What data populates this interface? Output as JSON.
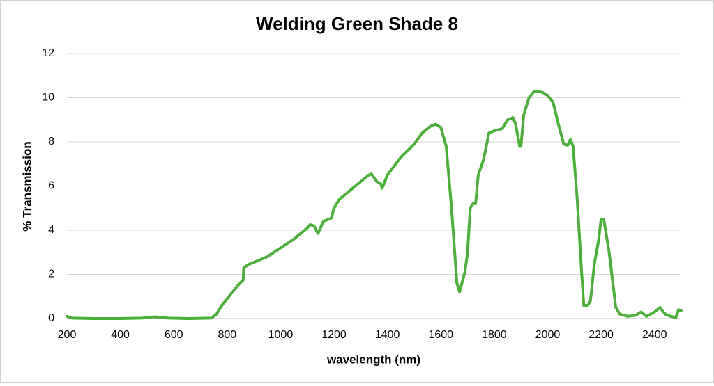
{
  "chart_data": {
    "type": "line",
    "title": "Welding Green Shade 8",
    "xlabel": "wavelength (nm)",
    "ylabel": "% Transmission",
    "x": [
      200,
      220,
      300,
      400,
      480,
      530,
      580,
      650,
      740,
      760,
      780,
      800,
      820,
      840,
      860,
      862,
      880,
      900,
      950,
      1000,
      1050,
      1080,
      1100,
      1110,
      1125,
      1140,
      1160,
      1180,
      1190,
      1200,
      1220,
      1250,
      1280,
      1300,
      1330,
      1340,
      1360,
      1375,
      1380,
      1390,
      1400,
      1450,
      1500,
      1530,
      1560,
      1580,
      1600,
      1620,
      1640,
      1660,
      1670,
      1690,
      1700,
      1710,
      1720,
      1730,
      1740,
      1760,
      1780,
      1800,
      1830,
      1850,
      1870,
      1880,
      1895,
      1900,
      1910,
      1930,
      1950,
      1980,
      2000,
      2020,
      2040,
      2060,
      2075,
      2085,
      2095,
      2110,
      2125,
      2135,
      2150,
      2160,
      2175,
      2190,
      2200,
      2210,
      2230,
      2245,
      2255,
      2270,
      2300,
      2330,
      2350,
      2370,
      2400,
      2420,
      2440,
      2460,
      2480,
      2490,
      2500
    ],
    "series": [
      {
        "name": "Welding Green Shade 8",
        "color": "#4caf3c",
        "values": [
          0.1,
          0.02,
          0,
          0,
          0.02,
          0.08,
          0.02,
          0,
          0.02,
          0.2,
          0.6,
          0.9,
          1.2,
          1.5,
          1.75,
          2.3,
          2.45,
          2.55,
          2.8,
          3.2,
          3.6,
          3.9,
          4.1,
          4.25,
          4.2,
          3.85,
          4.4,
          4.5,
          4.55,
          5.0,
          5.4,
          5.7,
          6.0,
          6.2,
          6.5,
          6.55,
          6.2,
          6.1,
          5.9,
          6.2,
          6.5,
          7.3,
          7.9,
          8.4,
          8.7,
          8.8,
          8.65,
          7.8,
          5.0,
          1.6,
          1.2,
          2.1,
          3.0,
          5.0,
          5.2,
          5.2,
          6.5,
          7.2,
          8.4,
          8.5,
          8.6,
          9.0,
          9.1,
          8.8,
          7.8,
          7.8,
          9.2,
          10.0,
          10.3,
          10.25,
          10.1,
          9.8,
          8.8,
          7.9,
          7.85,
          8.1,
          7.8,
          5.5,
          2.5,
          0.6,
          0.6,
          0.8,
          2.5,
          3.5,
          4.5,
          4.5,
          3.0,
          1.5,
          0.5,
          0.2,
          0.1,
          0.15,
          0.3,
          0.1,
          0.3,
          0.5,
          0.2,
          0.1,
          0.05,
          0.4,
          0.35
        ]
      }
    ],
    "xlim": [
      200,
      2500
    ],
    "xticks": [
      200,
      400,
      600,
      800,
      1000,
      1200,
      1400,
      1600,
      1800,
      2000,
      2200,
      2400
    ],
    "ylim": [
      0,
      12
    ],
    "yticks": [
      0,
      2,
      4,
      6,
      8,
      10,
      12
    ],
    "grid": true
  }
}
